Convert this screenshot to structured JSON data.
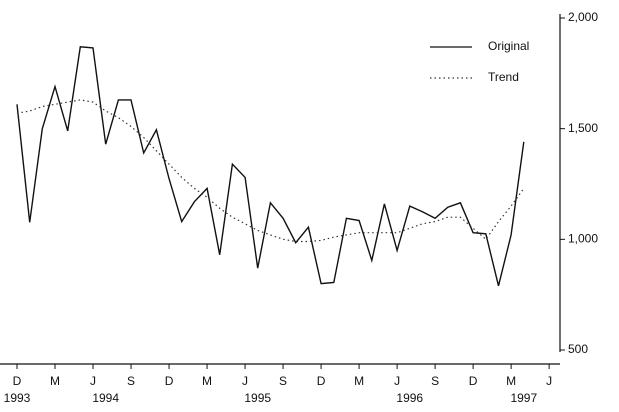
{
  "chart_data": {
    "type": "line",
    "categories": [
      "D",
      null,
      null,
      "M",
      null,
      null,
      "J",
      null,
      null,
      "S",
      null,
      null,
      "D",
      null,
      null,
      "M",
      null,
      null,
      "J",
      null,
      null,
      "S",
      null,
      null,
      "D",
      null,
      null,
      "M",
      null,
      null,
      "J",
      null,
      null,
      "S",
      null,
      null,
      "D",
      null,
      null,
      "M",
      null,
      null,
      "J"
    ],
    "year_labels": [
      {
        "value": 0,
        "label": "1993"
      },
      {
        "value": 7,
        "label": "1994"
      },
      {
        "value": 19,
        "label": "1995"
      },
      {
        "value": 31,
        "label": "1996"
      },
      {
        "value": 40,
        "label": "1997"
      }
    ],
    "series": [
      {
        "name": "Original",
        "color": "#111111",
        "style": "solid",
        "values": [
          1610,
          1077,
          1500,
          1690,
          1490,
          1870,
          1865,
          1430,
          1630,
          1630,
          1390,
          1495,
          1275,
          1080,
          1170,
          1230,
          930,
          1340,
          1280,
          870,
          1165,
          1095,
          985,
          1055,
          800,
          805,
          1095,
          1085,
          905,
          1160,
          950,
          1150,
          1125,
          1095,
          1145,
          1165,
          1030,
          1025,
          790,
          1020,
          1440,
          null,
          null
        ]
      },
      {
        "name": "Trend",
        "color": "#333333",
        "style": "dotted",
        "values": [
          1570,
          1580,
          1600,
          1610,
          1620,
          1630,
          1620,
          1580,
          1550,
          1510,
          1460,
          1400,
          1340,
          1280,
          1230,
          1190,
          1140,
          1100,
          1070,
          1040,
          1020,
          1000,
          990,
          990,
          995,
          1010,
          1020,
          1030,
          1030,
          1030,
          1030,
          1050,
          1070,
          1080,
          1100,
          1100,
          1050,
          1000,
          1080,
          1150,
          1230,
          null,
          null
        ]
      }
    ],
    "ylim": [
      500,
      2000
    ],
    "yticks": [
      {
        "value": 500,
        "label": "500"
      },
      {
        "value": 1000,
        "label": "1,000"
      },
      {
        "value": 1500,
        "label": "1,500"
      },
      {
        "value": 2000,
        "label": "2,000"
      }
    ],
    "y_axis_side": "right",
    "legend": "upper right",
    "grid": false
  }
}
